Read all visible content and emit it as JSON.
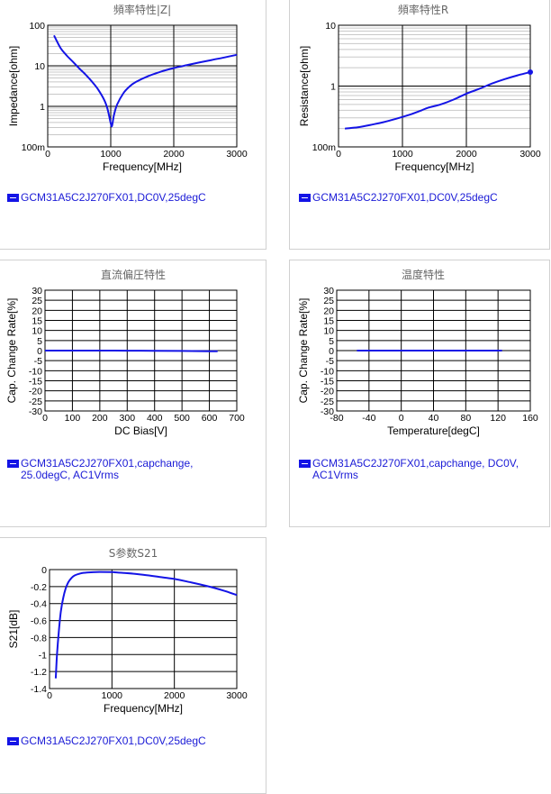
{
  "colors": {
    "series": "#1414e6",
    "grid": "#c8c8c8",
    "grid_major": "#000000"
  },
  "chart_data": [
    {
      "id": "c1",
      "type": "line",
      "title": "頻率特性|Z|",
      "xlabel": "Frequency[MHz]",
      "ylabel": "Impedance[ohm]",
      "xlim": [
        0,
        3000
      ],
      "ylim": [
        0.1,
        100
      ],
      "yscale": "log",
      "xticks": [
        0,
        1000,
        2000,
        3000
      ],
      "xtick_labels": [
        "0",
        "1000",
        "2000",
        "3000"
      ],
      "yticks": [
        0.1,
        1,
        10,
        100
      ],
      "ytick_labels": [
        "100m",
        "1",
        "10",
        "100"
      ],
      "legend": "GCM31A5C2J270FX01,DC0V,25degC",
      "series": [
        {
          "x": [
            100,
            200,
            300,
            400,
            500,
            600,
            700,
            800,
            900,
            950,
            1000,
            1020,
            1050,
            1100,
            1200,
            1300,
            1400,
            1600,
            1800,
            2000,
            2200,
            2400,
            2600,
            2800,
            3000
          ],
          "y": [
            56,
            28,
            18,
            12.5,
            8.6,
            6.1,
            4.1,
            2.6,
            1.4,
            0.85,
            0.38,
            0.33,
            0.6,
            1.1,
            2.1,
            3.1,
            4.0,
            5.6,
            7.2,
            8.8,
            10.3,
            12.0,
            13.9,
            16.0,
            18.7
          ]
        }
      ]
    },
    {
      "id": "c2",
      "type": "line",
      "title": "頻率特性R",
      "xlabel": "Frequency[MHz]",
      "ylabel": "Resistance[ohm]",
      "xlim": [
        0,
        3000
      ],
      "ylim": [
        0.1,
        10
      ],
      "yscale": "log",
      "xticks": [
        0,
        1000,
        2000,
        3000
      ],
      "xtick_labels": [
        "0",
        "1000",
        "2000",
        "3000"
      ],
      "yticks": [
        0.1,
        1,
        10
      ],
      "ytick_labels": [
        "100m",
        "1",
        "10"
      ],
      "legend": "GCM31A5C2J270FX01,DC0V,25degC",
      "series": [
        {
          "x": [
            100,
            300,
            500,
            700,
            900,
            1100,
            1300,
            1400,
            1600,
            1800,
            2000,
            2200,
            2400,
            2600,
            2800,
            3000
          ],
          "y": [
            0.2,
            0.21,
            0.23,
            0.255,
            0.29,
            0.335,
            0.4,
            0.44,
            0.5,
            0.6,
            0.75,
            0.9,
            1.1,
            1.3,
            1.5,
            1.7
          ]
        }
      ]
    },
    {
      "id": "c3",
      "type": "line",
      "title": "直流偏圧特性",
      "xlabel": "DC Bias[V]",
      "ylabel": "Cap. Change Rate[%]",
      "xlim": [
        0,
        700
      ],
      "ylim": [
        -30,
        30
      ],
      "yscale": "linear",
      "xticks": [
        0,
        100,
        200,
        300,
        400,
        500,
        600,
        700
      ],
      "xtick_labels": [
        "0",
        "100",
        "200",
        "300",
        "400",
        "500",
        "600",
        "700"
      ],
      "yticks": [
        -30,
        -25,
        -20,
        -15,
        -10,
        -5,
        0,
        5,
        10,
        15,
        20,
        25,
        30
      ],
      "ytick_labels": [
        "-30",
        "-25",
        "-20",
        "-15",
        "-10",
        "-5",
        "0",
        "5",
        "10",
        "15",
        "20",
        "25",
        "30"
      ],
      "legend": "GCM31A5C2J270FX01,capchange,\n25.0degC, AC1Vrms",
      "series": [
        {
          "x": [
            0,
            100,
            200,
            300,
            400,
            500,
            600,
            630
          ],
          "y": [
            0,
            0,
            0,
            -0.05,
            -0.1,
            -0.2,
            -0.3,
            -0.35
          ]
        }
      ]
    },
    {
      "id": "c4",
      "type": "line",
      "title": "温度特性",
      "xlabel": "Temperature[degC]",
      "ylabel": "Cap. Change Rate[%]",
      "xlim": [
        -80,
        160
      ],
      "ylim": [
        -30,
        30
      ],
      "yscale": "linear",
      "xticks": [
        -80,
        -40,
        0,
        40,
        80,
        120,
        160
      ],
      "xtick_labels": [
        "-80",
        "-40",
        "0",
        "40",
        "80",
        "120",
        "160"
      ],
      "yticks": [
        -30,
        -25,
        -20,
        -15,
        -10,
        -5,
        0,
        5,
        10,
        15,
        20,
        25,
        30
      ],
      "ytick_labels": [
        "-30",
        "-25",
        "-20",
        "-15",
        "-10",
        "-5",
        "0",
        "5",
        "10",
        "15",
        "20",
        "25",
        "30"
      ],
      "legend": "GCM31A5C2J270FX01,capchange, DC0V,\nAC1Vrms",
      "series": [
        {
          "x": [
            -55,
            -25,
            0,
            25,
            50,
            75,
            100,
            125
          ],
          "y": [
            0,
            0,
            0,
            0,
            0,
            0,
            0,
            0
          ]
        }
      ]
    },
    {
      "id": "c5",
      "type": "line",
      "title": "S参数S21",
      "xlabel": "Frequency[MHz]",
      "ylabel": "S21[dB]",
      "xlim": [
        0,
        3000
      ],
      "ylim": [
        -1.4,
        0
      ],
      "yscale": "linear",
      "xticks": [
        0,
        1000,
        2000,
        3000
      ],
      "xtick_labels": [
        "0",
        "1000",
        "2000",
        "3000"
      ],
      "yticks": [
        -1.4,
        -1.2,
        -1,
        -0.8,
        -0.6,
        -0.4,
        -0.2,
        0
      ],
      "ytick_labels": [
        "-1.4",
        "-1.2",
        "-1",
        "-0.8",
        "-0.6",
        "-0.4",
        "-0.2",
        "0"
      ],
      "legend": "GCM31A5C2J270FX01,DC0V,25degC",
      "series": [
        {
          "x": [
            100,
            120,
            150,
            180,
            220,
            260,
            300,
            350,
            400,
            500,
            600,
            800,
            1000,
            1200,
            1500,
            1800,
            2000,
            2200,
            2500,
            2800,
            3000
          ],
          "y": [
            -1.28,
            -1.0,
            -0.72,
            -0.5,
            -0.33,
            -0.22,
            -0.15,
            -0.1,
            -0.07,
            -0.045,
            -0.035,
            -0.028,
            -0.03,
            -0.04,
            -0.06,
            -0.09,
            -0.11,
            -0.14,
            -0.19,
            -0.25,
            -0.3
          ]
        }
      ]
    }
  ]
}
